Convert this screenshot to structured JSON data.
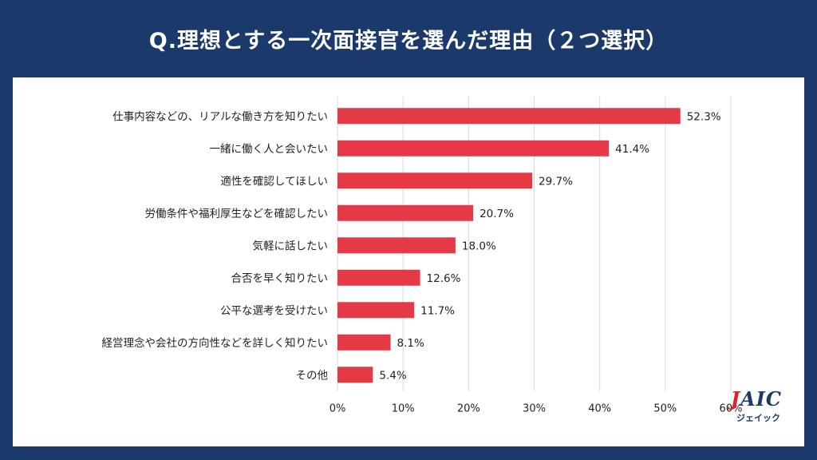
{
  "header": {
    "title": "Q.理想とする一次面接官を選んだ理由（２つ選択）"
  },
  "logo": {
    "main_j": "J",
    "main_rest": "AIC",
    "sub": "ジェイック"
  },
  "colors": {
    "bar": "#e63946",
    "background": "#1b3a6b",
    "panel": "#ffffff",
    "grid": "#d9d9d9"
  },
  "chart_data": {
    "type": "bar",
    "orientation": "horizontal",
    "categories": [
      "仕事内容などの、リアルな働き方を知りたい",
      "一緒に働く人と会いたい",
      "適性を確認してほしい",
      "労働条件や福利厚生などを確認したい",
      "気軽に話したい",
      "合否を早く知りたい",
      "公平な選考を受けたい",
      "経営理念や会社の方向性などを詳しく知りたい",
      "その他"
    ],
    "values": [
      52.3,
      41.4,
      29.7,
      20.7,
      18.0,
      12.6,
      11.7,
      8.1,
      5.4
    ],
    "value_labels": [
      "52.3%",
      "41.4%",
      "29.7%",
      "20.7%",
      "18.0%",
      "12.6%",
      "11.7%",
      "8.1%",
      "5.4%"
    ],
    "xlim": [
      0,
      60
    ],
    "xticks": [
      0,
      10,
      20,
      30,
      40,
      50,
      60
    ],
    "xtick_labels": [
      "0%",
      "10%",
      "20%",
      "30%",
      "40%",
      "50%",
      "60%"
    ],
    "grid": true,
    "legend": "none"
  }
}
